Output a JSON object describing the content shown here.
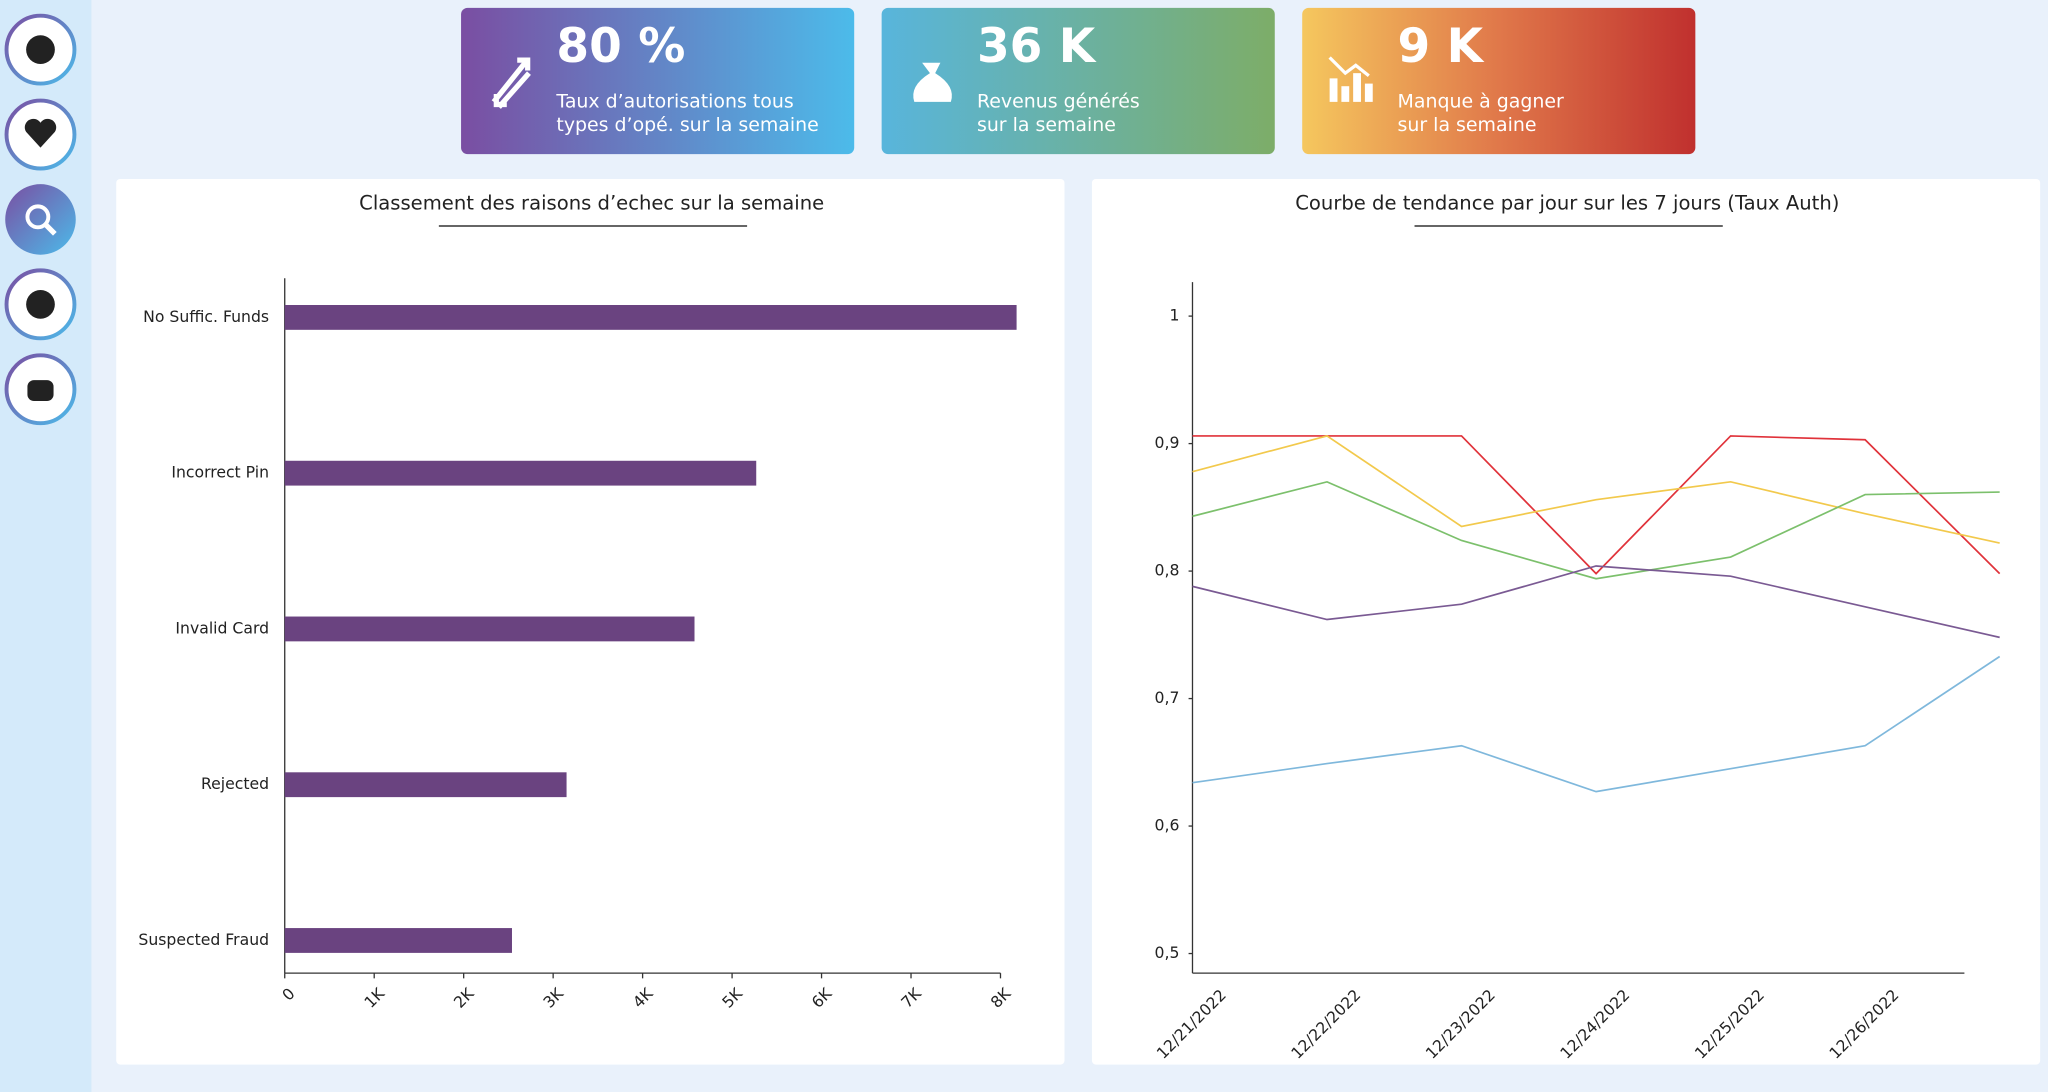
{
  "kpis": [
    {
      "value": "80 %",
      "label": [
        "Taux d’autorisations tous",
        "types d’opé. sur la semaine"
      ]
    },
    {
      "value": "36 K",
      "label": [
        "Revenus générés",
        "sur la semaine"
      ]
    },
    {
      "value": "9 K",
      "label": [
        "Manque à gagner",
        "sur la semaine"
      ]
    }
  ],
  "chart_data": [
    {
      "type": "hbar",
      "title": "Classement des raisons d’echec sur la semaine",
      "categories": [
        "No Suffic. Funds",
        "Incorrect Pin",
        "Invalid Card",
        "Rejected",
        "Suspected Fraud"
      ],
      "values": [
        8180,
        5270,
        4580,
        3150,
        2540
      ],
      "color": "#6a4380",
      "xlim": [
        0,
        8000
      ],
      "xticks": [
        0,
        {
          "value": 1000,
          "label": "1K"
        },
        {
          "value": 2000,
          "label": "2K"
        },
        {
          "value": 3000,
          "label": "3K"
        },
        {
          "value": 4000,
          "label": "4K"
        },
        {
          "value": 5000,
          "label": "5K"
        },
        {
          "value": 6000,
          "label": "6K"
        },
        {
          "value": 7000,
          "label": "7K"
        },
        {
          "value": 8000,
          "label": "8K"
        }
      ]
    },
    {
      "type": "line",
      "title": "Courbe de tendance par jour sur les 7 jours (Taux Auth)",
      "categories": [
        "12/21/2022",
        "12/22/2022",
        "12/23/2022",
        "12/24/2022",
        "12/25/2022",
        "12/26/2022",
        null
      ],
      "ylim": [
        0.5,
        1.0
      ],
      "yticks": [
        {
          "value": 0.5,
          "label": "0,5"
        },
        {
          "value": 0.6,
          "label": "0,6"
        },
        {
          "value": 0.7,
          "label": "0,7"
        },
        {
          "value": 0.8,
          "label": "0,8"
        },
        {
          "value": 0.9,
          "label": "0,9"
        },
        1
      ],
      "series": [
        {
          "color": "#e0323a",
          "values": [
            0.906,
            0.906,
            0.906,
            0.798,
            0.906,
            0.903,
            0.798
          ]
        },
        {
          "color": "#f2c94c",
          "values": [
            0.878,
            0.906,
            0.835,
            0.856,
            0.87,
            0.845,
            0.822
          ]
        },
        {
          "color": "#7cc06c",
          "values": [
            0.843,
            0.87,
            0.824,
            0.794,
            0.811,
            0.86,
            0.862
          ]
        },
        {
          "color": "#7a5a93",
          "values": [
            0.788,
            0.762,
            0.774,
            0.804,
            0.796,
            0.772,
            0.748
          ]
        },
        {
          "color": "#7fb8dc",
          "values": [
            0.634,
            0.649,
            0.663,
            0.627,
            0.645,
            0.663,
            0.733
          ]
        }
      ]
    }
  ]
}
